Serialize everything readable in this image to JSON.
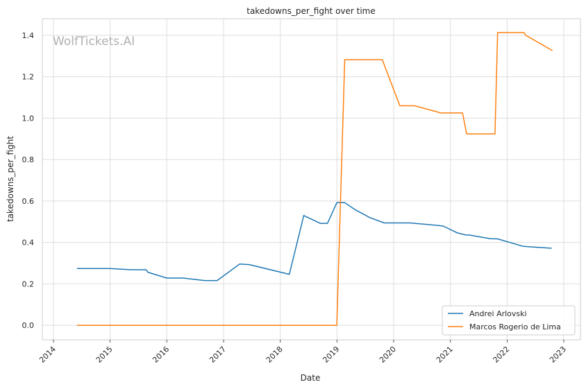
{
  "chart_data": {
    "type": "line",
    "title": "takedowns_per_fight over time",
    "xlabel": "Date",
    "ylabel": "takedowns_per_fight",
    "watermark": "WolfTickets.AI",
    "xlim": [
      "2014-01-01",
      "2023-01-01"
    ],
    "ylim": [
      -0.07,
      1.48
    ],
    "x_ticks": [
      "2014",
      "2015",
      "2016",
      "2017",
      "2018",
      "2019",
      "2020",
      "2021",
      "2022",
      "2023"
    ],
    "y_ticks": [
      "0.0",
      "0.2",
      "0.4",
      "0.6",
      "0.8",
      "1.0",
      "1.2",
      "1.4"
    ],
    "grid": true,
    "legend_position": "lower-right",
    "series": [
      {
        "name": "Andrei Arlovski",
        "color": "#1f77b4",
        "points": [
          [
            "2014-06-01",
            0.274
          ],
          [
            "2015-01-01",
            0.274
          ],
          [
            "2015-05-15",
            0.268
          ],
          [
            "2015-08-20",
            0.268
          ],
          [
            "2015-09-01",
            0.256
          ],
          [
            "2016-01-01",
            0.228
          ],
          [
            "2016-04-15",
            0.228
          ],
          [
            "2016-09-01",
            0.216
          ],
          [
            "2016-11-20",
            0.216
          ],
          [
            "2017-04-15",
            0.296
          ],
          [
            "2017-06-15",
            0.293
          ],
          [
            "2018-02-28",
            0.246
          ],
          [
            "2018-06-01",
            0.53
          ],
          [
            "2018-09-15",
            0.492
          ],
          [
            "2018-11-01",
            0.492
          ],
          [
            "2018-12-31",
            0.592
          ],
          [
            "2019-02-20",
            0.592
          ],
          [
            "2019-04-30",
            0.557
          ],
          [
            "2019-08-01",
            0.52
          ],
          [
            "2019-11-01",
            0.494
          ],
          [
            "2020-04-15",
            0.494
          ],
          [
            "2020-10-15",
            0.482
          ],
          [
            "2020-11-15",
            0.479
          ],
          [
            "2021-02-15",
            0.446
          ],
          [
            "2021-04-10",
            0.436
          ],
          [
            "2021-05-01",
            0.436
          ],
          [
            "2021-09-15",
            0.418
          ],
          [
            "2021-11-01",
            0.417
          ],
          [
            "2022-04-15",
            0.381
          ],
          [
            "2022-10-15",
            0.372
          ]
        ]
      },
      {
        "name": "Marcos Rogerio de Lima",
        "color": "#ff7f0e",
        "points": [
          [
            "2014-06-01",
            0.0
          ],
          [
            "2018-12-31",
            0.0
          ],
          [
            "2019-02-20",
            1.282
          ],
          [
            "2019-10-20",
            1.282
          ],
          [
            "2020-02-10",
            1.06
          ],
          [
            "2020-05-15",
            1.06
          ],
          [
            "2020-11-01",
            1.025
          ],
          [
            "2021-03-20",
            1.025
          ],
          [
            "2021-04-15",
            0.924
          ],
          [
            "2021-10-15",
            0.924
          ],
          [
            "2021-11-01",
            1.413
          ],
          [
            "2022-04-20",
            1.413
          ],
          [
            "2022-05-01",
            1.4
          ],
          [
            "2022-10-20",
            1.326
          ]
        ]
      }
    ]
  }
}
